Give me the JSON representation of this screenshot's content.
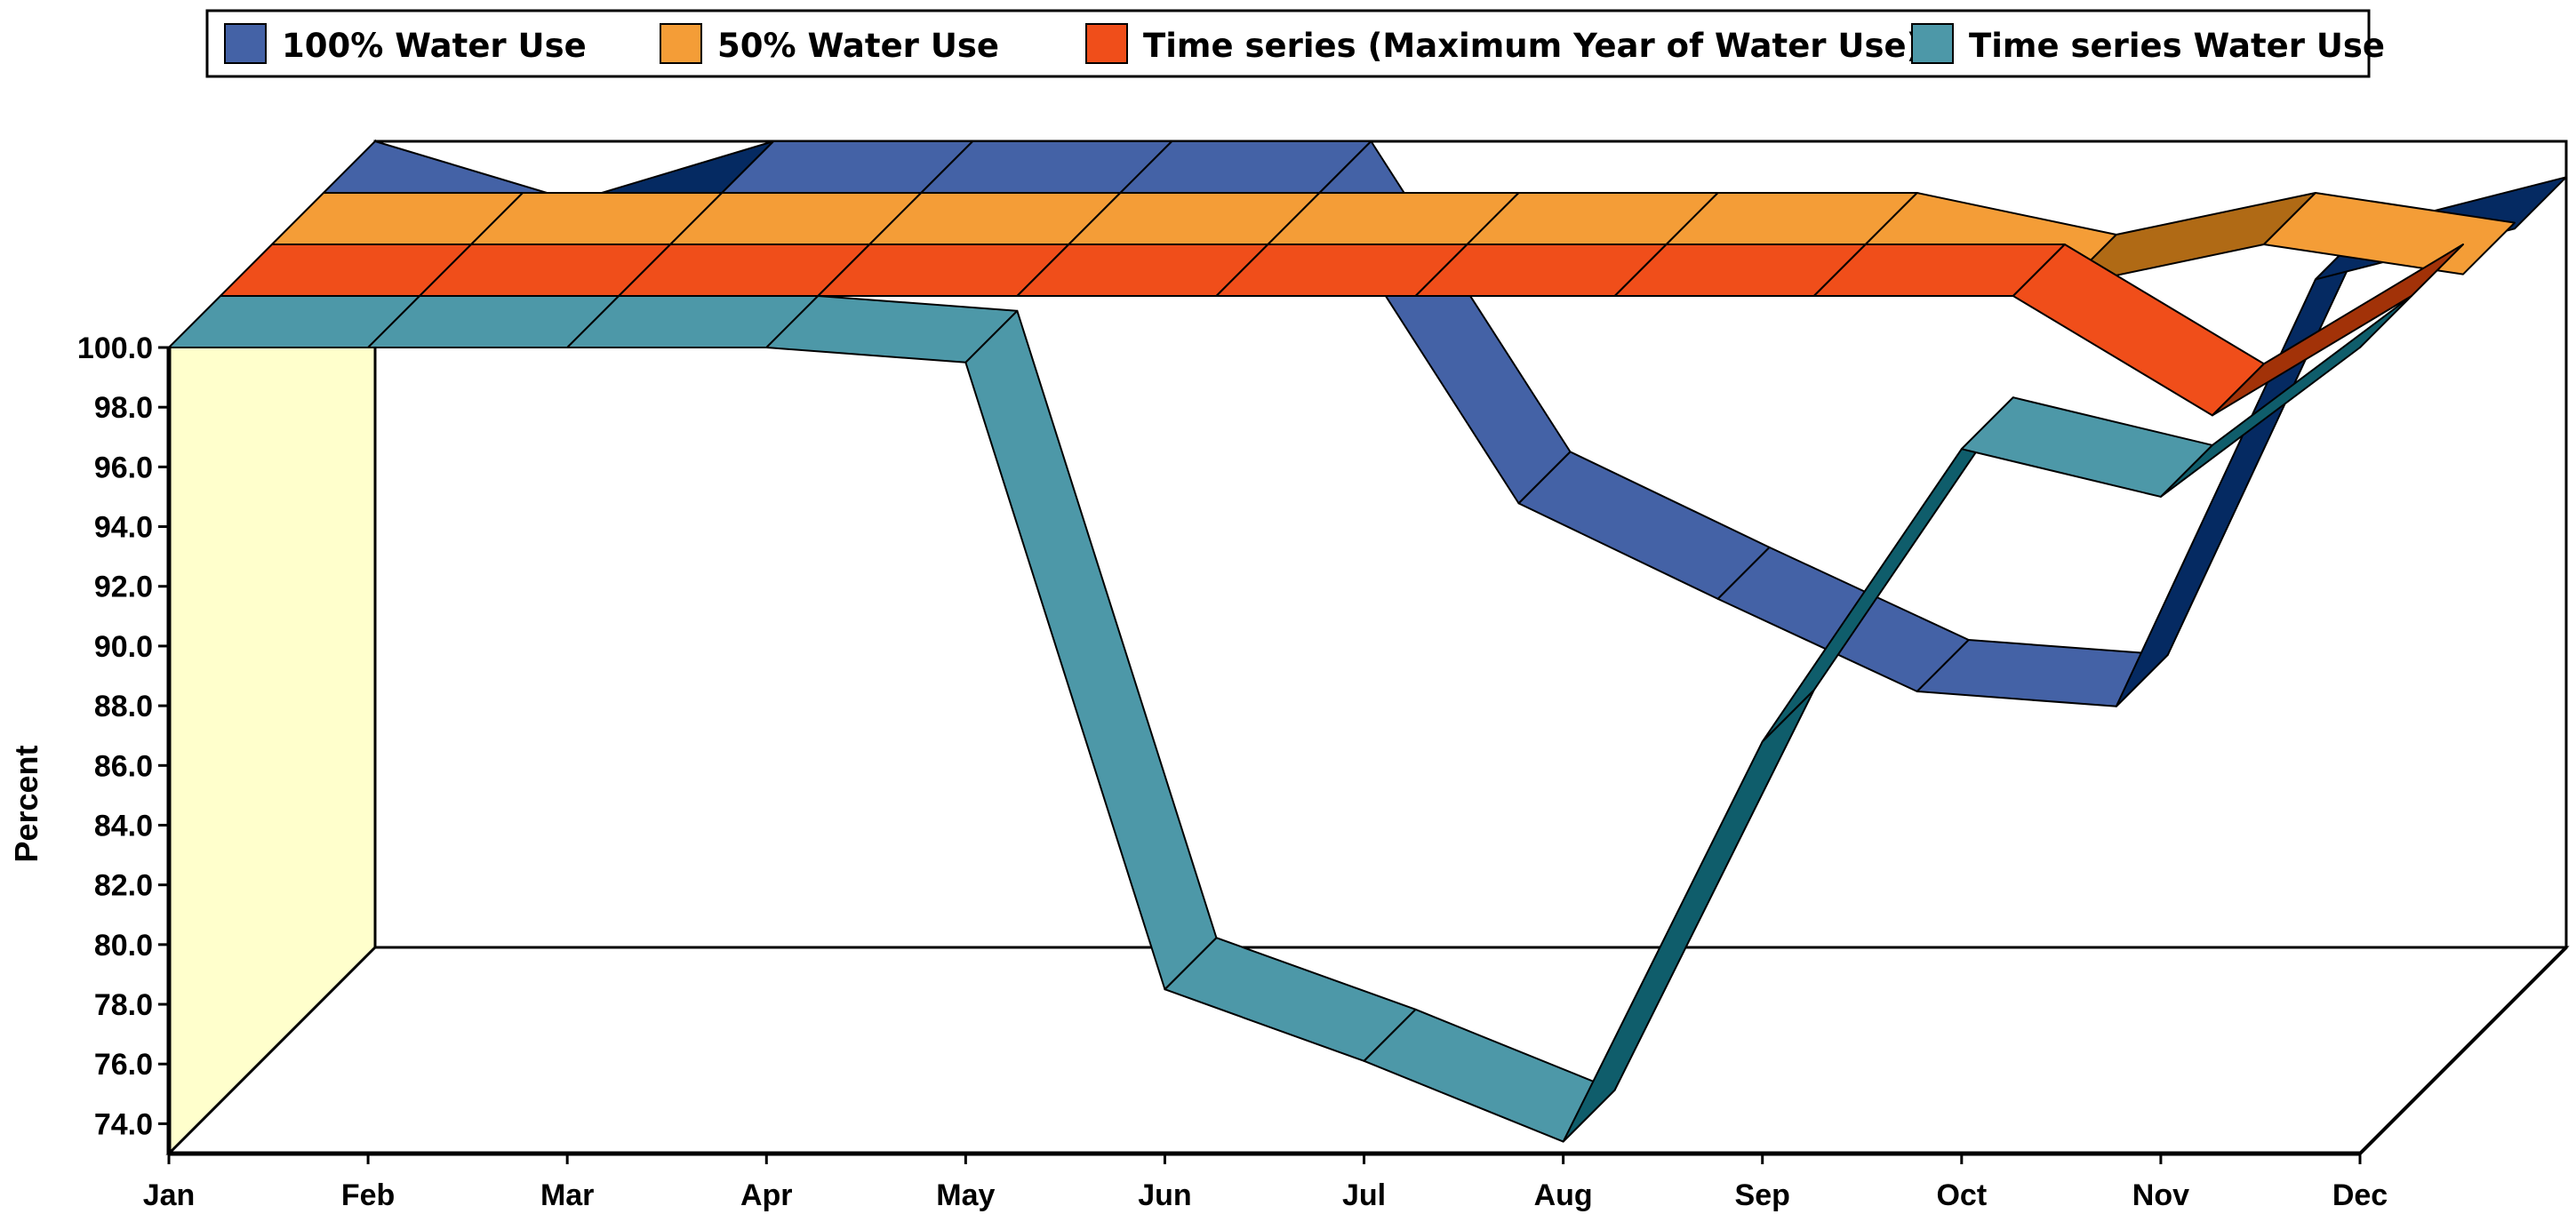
{
  "chart_data": {
    "type": "line",
    "style": "3d-ribbon",
    "title": "",
    "xlabel": "",
    "ylabel": "Percent",
    "categories": [
      "Jan",
      "Feb",
      "Mar",
      "Apr",
      "May",
      "Jun",
      "Jul",
      "Aug",
      "Sep",
      "Oct",
      "Nov",
      "Dec"
    ],
    "y_ticks": [
      "74.0",
      "76.0",
      "78.0",
      "80.0",
      "82.0",
      "84.0",
      "86.0",
      "88.0",
      "90.0",
      "92.0",
      "94.0",
      "96.0",
      "98.0",
      "100.0"
    ],
    "ylim": [
      73.0,
      100.0
    ],
    "legend_position": "top",
    "series": [
      {
        "name": "100% Water Use",
        "color": "#4462A6",
        "side_color": "#052A62",
        "values": [
          100.0,
          98.0,
          100.0,
          100.0,
          100.0,
          100.0,
          89.6,
          86.4,
          83.3,
          82.8,
          97.1,
          98.8
        ]
      },
      {
        "name": "50% Water Use",
        "color": "#F49D37",
        "side_color": "#B06A15",
        "values": [
          100.0,
          100.0,
          100.0,
          100.0,
          100.0,
          100.0,
          100.0,
          100.0,
          100.0,
          98.6,
          100.0,
          99.0
        ]
      },
      {
        "name": "Time series (Maximum Year of Water Use)",
        "color": "#F04E1A",
        "side_color": "#A23208",
        "values": [
          100.0,
          100.0,
          100.0,
          100.0,
          100.0,
          100.0,
          100.0,
          100.0,
          100.0,
          100.0,
          96.0,
          100.0
        ]
      },
      {
        "name": "Time series Water Use",
        "color": "#4D98A8",
        "side_color": "#0F5D6B",
        "values": [
          100.0,
          100.0,
          100.0,
          100.0,
          99.5,
          78.5,
          76.1,
          73.4,
          86.8,
          96.6,
          95.0,
          100.0
        ]
      }
    ]
  }
}
